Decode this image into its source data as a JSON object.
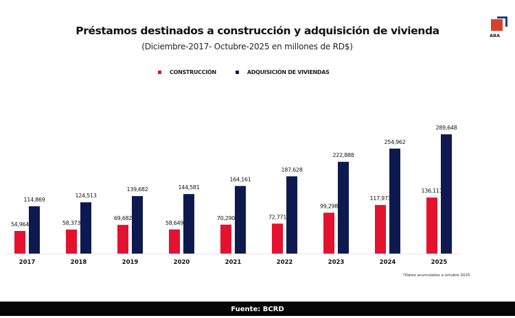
{
  "logo": {
    "text": "ABA",
    "colors": {
      "square": "#d8402c",
      "corner": "#2b3a78"
    }
  },
  "footer": {
    "source": "Fuente: BCRD"
  },
  "chart_data": {
    "type": "bar",
    "title": "Préstamos destinados a construcción y adquisición de vivienda",
    "subtitle": "(Diciembre-2017- Octubre-2025 en millones de RD$)",
    "xlabel": "",
    "ylabel": "",
    "categories": [
      "2017",
      "2018",
      "2019",
      "2020",
      "2021",
      "2022",
      "2023",
      "2024",
      "2025"
    ],
    "series": [
      {
        "name": "CONSTRUCCIÓN",
        "color": "#e4112f",
        "values": [
          54964,
          58373,
          69682,
          58649,
          70290,
          72771,
          99298,
          117973,
          136111
        ],
        "labels": [
          "54,964",
          "58,373",
          "69,682",
          "58,649",
          "70,290",
          "72,771",
          "99,298",
          "117,973",
          "136,111"
        ]
      },
      {
        "name": "ADQUISICIÓN DE VIVIENDAS",
        "color": "#0e1a4f",
        "values": [
          114869,
          124513,
          139682,
          144581,
          164161,
          187628,
          222888,
          254962,
          289648
        ],
        "labels": [
          "114,869",
          "124,513",
          "139,682",
          "144,581",
          "164,161",
          "187,628",
          "222,888",
          "254,962",
          "289,648"
        ]
      }
    ],
    "ylim": [
      0,
      300000
    ],
    "grid": false,
    "legend": "top-center",
    "note": "*Datos acumulados a octubre 2025"
  }
}
